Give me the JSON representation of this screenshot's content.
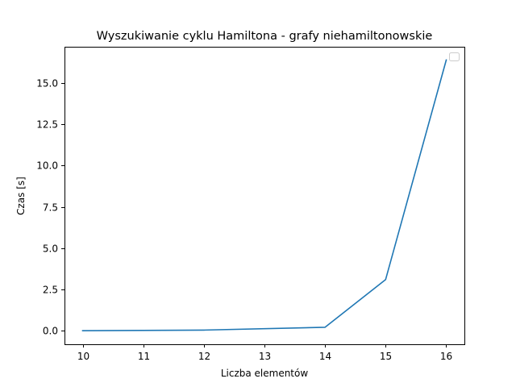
{
  "chart_data": {
    "type": "line",
    "title": "Wyszukiwanie cyklu Hamiltona - grafy niehamiltonowskie",
    "xlabel": "Liczba elementów",
    "ylabel": "Czas [s]",
    "x": [
      10,
      12,
      14,
      15,
      16
    ],
    "series": [
      {
        "values": [
          0.0,
          0.04,
          0.21,
          3.1,
          16.4
        ],
        "color": "#1f77b4"
      }
    ],
    "xlim": [
      9.7,
      16.3
    ],
    "ylim": [
      -0.82,
      17.2
    ],
    "xticks": [
      10,
      11,
      12,
      13,
      14,
      15,
      16
    ],
    "xtick_labels": [
      "10",
      "11",
      "12",
      "13",
      "14",
      "15",
      "16"
    ],
    "yticks": [
      0,
      2.5,
      5,
      7.5,
      10,
      12.5,
      15
    ],
    "ytick_labels": [
      "0.0",
      "2.5",
      "5.0",
      "7.5",
      "10.0",
      "12.5",
      "15.0"
    ],
    "grid": false,
    "legend": {
      "position": "top-right",
      "entries": []
    }
  }
}
